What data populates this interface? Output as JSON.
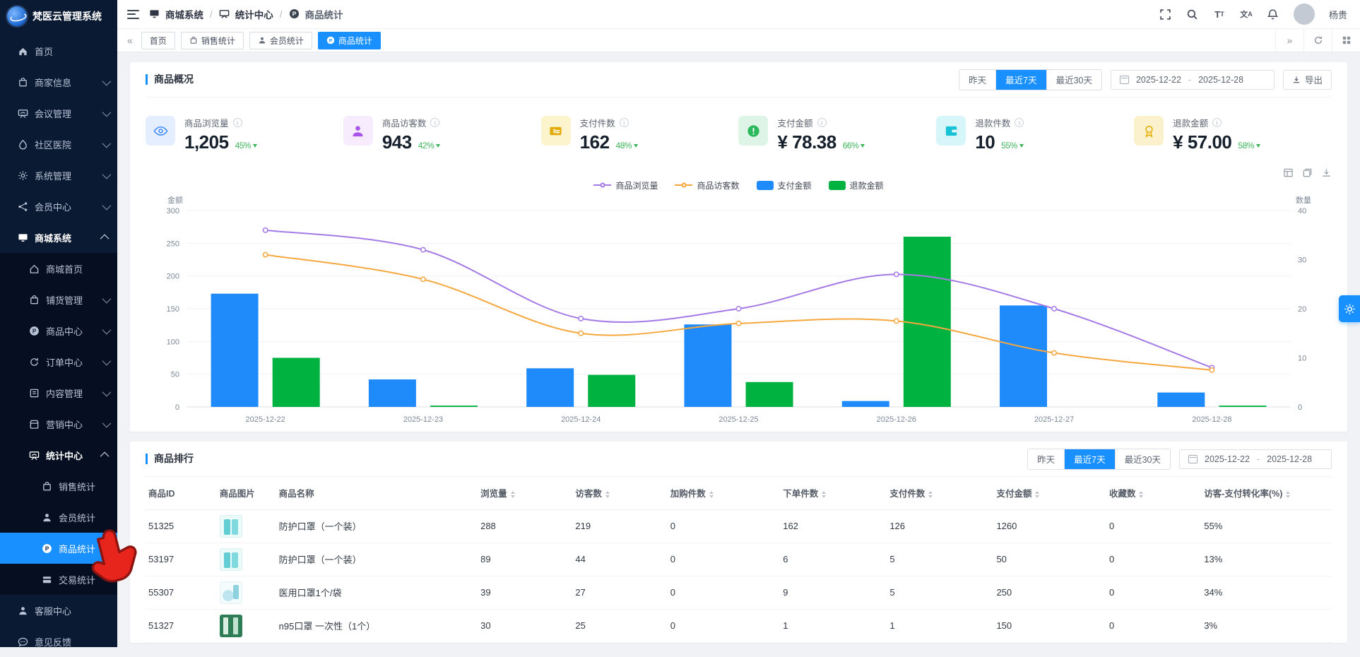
{
  "app": {
    "title": "梵医云管理系统"
  },
  "sidebar": {
    "items": [
      {
        "key": "home",
        "label": "首页",
        "icon": "home-icon",
        "level": 0,
        "chevron": null,
        "active": false
      },
      {
        "key": "merchant-info",
        "label": "商家信息",
        "icon": "shop-bag-icon",
        "level": 0,
        "chevron": "down",
        "active": false
      },
      {
        "key": "meeting-mgmt",
        "label": "会议管理",
        "icon": "board-icon",
        "level": 0,
        "chevron": "down",
        "active": false
      },
      {
        "key": "community-hosp",
        "label": "社区医院",
        "icon": "drop-icon",
        "level": 0,
        "chevron": "down",
        "active": false
      },
      {
        "key": "system-mgmt",
        "label": "系统管理",
        "icon": "gear-icon",
        "level": 0,
        "chevron": "down",
        "active": false
      },
      {
        "key": "member-center",
        "label": "会员中心",
        "icon": "share-icon",
        "level": 0,
        "chevron": "down",
        "active": false
      },
      {
        "key": "mall-system",
        "label": "商城系统",
        "icon": "monitor-icon",
        "level": 0,
        "chevron": "up",
        "active": false,
        "expanded": true
      },
      {
        "key": "mall-home",
        "label": "商城首页",
        "icon": "home-outline-icon",
        "level": 1,
        "chevron": null,
        "active": false,
        "sub": true
      },
      {
        "key": "stock-mgmt",
        "label": "铺货管理",
        "icon": "shop-bag-icon",
        "level": 1,
        "chevron": "down",
        "active": false,
        "sub": true
      },
      {
        "key": "product-center",
        "label": "商品中心",
        "icon": "p-circle-icon",
        "level": 1,
        "chevron": "down",
        "active": false,
        "sub": true
      },
      {
        "key": "order-center",
        "label": "订单中心",
        "icon": "refresh-circle-icon",
        "level": 1,
        "chevron": "down",
        "active": false,
        "sub": true
      },
      {
        "key": "content-mgmt",
        "label": "内容管理",
        "icon": "doc-icon",
        "level": 1,
        "chevron": "down",
        "active": false,
        "sub": true
      },
      {
        "key": "marketing-center",
        "label": "营销中心",
        "icon": "store-icon",
        "level": 1,
        "chevron": "down",
        "active": false,
        "sub": true
      },
      {
        "key": "stats-center",
        "label": "统计中心",
        "icon": "board-icon",
        "level": 1,
        "chevron": "up",
        "active": false,
        "sub": true,
        "expanded": true
      },
      {
        "key": "sales-stats",
        "label": "销售统计",
        "icon": "shop-bag-icon",
        "level": 2,
        "chevron": null,
        "active": false,
        "sub": true
      },
      {
        "key": "member-stats",
        "label": "会员统计",
        "icon": "person-icon",
        "level": 2,
        "chevron": null,
        "active": false,
        "sub": true
      },
      {
        "key": "product-stats",
        "label": "商品统计",
        "icon": "p-circle-icon",
        "level": 2,
        "chevron": null,
        "active": true,
        "sub": true
      },
      {
        "key": "trade-stats",
        "label": "交易统计",
        "icon": "card-icon",
        "level": 2,
        "chevron": null,
        "active": false,
        "sub": true
      },
      {
        "key": "service-center",
        "label": "客服中心",
        "icon": "person-icon",
        "level": 0,
        "chevron": null,
        "active": false
      },
      {
        "key": "feedback",
        "label": "意见反馈",
        "icon": "chat-icon",
        "level": 0,
        "chevron": null,
        "active": false
      }
    ]
  },
  "header": {
    "breadcrumb": [
      {
        "label": "商城系统",
        "icon": "monitor-icon"
      },
      {
        "label": "统计中心",
        "icon": "board-icon"
      },
      {
        "label": "商品统计",
        "icon": "p-circle-icon"
      }
    ],
    "separator": "/",
    "user": {
      "name": "杨贵"
    },
    "icons": [
      "fullscreen-icon",
      "search-icon",
      "font-size-icon",
      "language-icon",
      "bell-icon"
    ]
  },
  "tabs": {
    "back_glyph": "«",
    "forward_glyph": "»",
    "items": [
      {
        "label": "首页",
        "icon": null,
        "active": false
      },
      {
        "label": "销售统计",
        "icon": "shop-bag-icon",
        "active": false
      },
      {
        "label": "会员统计",
        "icon": "person-icon",
        "active": false
      },
      {
        "label": "商品统计",
        "icon": "p-circle-icon",
        "active": true
      }
    ]
  },
  "overview_panel": {
    "title": "商品概况",
    "ranges": [
      "昨天",
      "最近7天",
      "最近30天"
    ],
    "active_range": "最近7天",
    "date_start": "2025-12-22",
    "date_sep": "-",
    "date_end": "2025-12-28",
    "export_label": "导出",
    "chart_tool_icons": [
      "dataview-icon",
      "restore-icon",
      "download-icon"
    ],
    "stats": [
      {
        "label": "商品浏览量",
        "value": "1,205",
        "delta": "45%",
        "icon": "eye-icon",
        "accent": "#3d8af8",
        "bg": "#e4eefe"
      },
      {
        "label": "商品访客数",
        "value": "943",
        "delta": "42%",
        "icon": "person-icon",
        "accent": "#a855e8",
        "bg": "#f6ecfe"
      },
      {
        "label": "支付件数",
        "value": "162",
        "delta": "48%",
        "icon": "pay-card-icon",
        "accent": "#e2ab08",
        "bg": "#fbf4cd"
      },
      {
        "label": "支付金额",
        "value": "¥ 78.38",
        "delta": "66%",
        "icon": "exclaim-icon",
        "accent": "#2cb85c",
        "bg": "#ddf4e6"
      },
      {
        "label": "退款件数",
        "value": "10",
        "delta": "55%",
        "icon": "wallet-icon",
        "accent": "#16c2d6",
        "bg": "#d7f6fa"
      },
      {
        "label": "退款金额",
        "value": "¥ 57.00",
        "delta": "58%",
        "icon": "medal-icon",
        "accent": "#e7b00a",
        "bg": "#fbf2cd"
      }
    ]
  },
  "chart_data": {
    "type": "combo",
    "x": [
      "2025-12-22",
      "2025-12-23",
      "2025-12-24",
      "2025-12-25",
      "2025-12-26",
      "2025-12-27",
      "2025-12-28"
    ],
    "left_axis": {
      "title": "金额",
      "min": 0,
      "max": 300,
      "step": 50
    },
    "right_axis": {
      "title": "数量",
      "min": 0,
      "max": 40,
      "step": 10
    },
    "grid": true,
    "legend_position": "top-center",
    "series": [
      {
        "name": "商品浏览量",
        "type": "line",
        "axis": "right",
        "color": "#a57ae6",
        "values": [
          36,
          32,
          18,
          20,
          27,
          20,
          8
        ]
      },
      {
        "name": "商品访客数",
        "type": "line",
        "axis": "right",
        "color": "#f6a73e",
        "values": [
          31,
          26,
          15,
          17,
          17.5,
          11,
          7.5
        ]
      },
      {
        "name": "支付金额",
        "type": "bar",
        "axis": "left",
        "color": "#1f8bfb",
        "values": [
          173,
          42,
          59,
          126,
          9,
          155,
          22
        ]
      },
      {
        "name": "退款金额",
        "type": "bar",
        "axis": "left",
        "color": "#00b240",
        "values": [
          75,
          2,
          49,
          38,
          260,
          0,
          2
        ]
      }
    ]
  },
  "ranking_panel": {
    "title": "商品排行",
    "ranges": [
      "昨天",
      "最近7天",
      "最近30天"
    ],
    "active_range": "最近7天",
    "date_start": "2025-12-22",
    "date_sep": "-",
    "date_end": "2025-12-28",
    "table": {
      "columns": [
        {
          "label": "商品ID",
          "sortable": false
        },
        {
          "label": "商品图片",
          "sortable": false
        },
        {
          "label": "商品名称",
          "sortable": false
        },
        {
          "label": "浏览量",
          "sortable": true
        },
        {
          "label": "访客数",
          "sortable": true
        },
        {
          "label": "加购件数",
          "sortable": true
        },
        {
          "label": "下单件数",
          "sortable": true
        },
        {
          "label": "支付件数",
          "sortable": true
        },
        {
          "label": "支付金额",
          "sortable": true
        },
        {
          "label": "收藏数",
          "sortable": true
        },
        {
          "label": "访客-支付转化率(%)",
          "sortable": true
        }
      ],
      "rows": [
        {
          "id": "51325",
          "thumb": "teal-boxes",
          "name": "防护口罩（一个装）",
          "views": "288",
          "visitors": "219",
          "cart": "0",
          "orders": "162",
          "paid": "126",
          "amount": "1260",
          "favorites": "0",
          "conversion": "55%"
        },
        {
          "id": "53197",
          "thumb": "teal-boxes",
          "name": "防护口罩（一个装）",
          "views": "89",
          "visitors": "44",
          "cart": "0",
          "orders": "6",
          "paid": "5",
          "amount": "50",
          "favorites": "0",
          "conversion": "13%"
        },
        {
          "id": "55307",
          "thumb": "cyan-round",
          "name": "医用口罩1个/袋",
          "views": "39",
          "visitors": "27",
          "cart": "0",
          "orders": "9",
          "paid": "5",
          "amount": "250",
          "favorites": "0",
          "conversion": "34%"
        },
        {
          "id": "51327",
          "thumb": "green-pack",
          "name": "n95口罩 一次性（1个）",
          "views": "30",
          "visitors": "25",
          "cart": "0",
          "orders": "1",
          "paid": "1",
          "amount": "150",
          "favorites": "0",
          "conversion": "3%"
        }
      ]
    }
  }
}
